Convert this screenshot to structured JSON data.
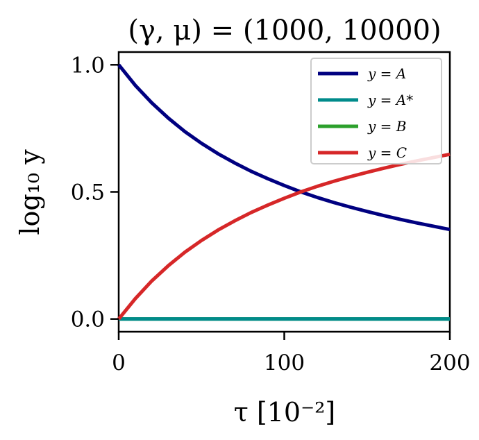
{
  "chart_data": {
    "type": "line",
    "title": "(γ, μ) = (1000, 10000)",
    "xlabel": "τ [10⁻²]",
    "ylabel": "log₁₀ y",
    "xlim": [
      0,
      200
    ],
    "ylim": [
      -0.05,
      1.05
    ],
    "xticks": [
      0,
      100,
      200
    ],
    "xtick_labels": [
      "0",
      "100",
      "200"
    ],
    "yticks": [
      0.0,
      0.5,
      1.0
    ],
    "ytick_labels": [
      "0.0",
      "0.5",
      "1.0"
    ],
    "grid": false,
    "legend_position": "top-right",
    "x": [
      0,
      10,
      20,
      30,
      40,
      50,
      60,
      70,
      80,
      90,
      100,
      110,
      120,
      130,
      140,
      150,
      160,
      170,
      180,
      190,
      200
    ],
    "series": [
      {
        "name": "y = A",
        "color": "#000080",
        "values": [
          1.0,
          0.919,
          0.85,
          0.79,
          0.737,
          0.691,
          0.65,
          0.614,
          0.581,
          0.552,
          0.525,
          0.5,
          0.478,
          0.458,
          0.44,
          0.423,
          0.407,
          0.392,
          0.378,
          0.365,
          0.352
        ]
      },
      {
        "name": "y = A*",
        "color": "#008b8b",
        "values": [
          0,
          0,
          0,
          0,
          0,
          0,
          0,
          0,
          0,
          0,
          0,
          0,
          0,
          0,
          0,
          0,
          0,
          0,
          0,
          0,
          0
        ]
      },
      {
        "name": "y = B",
        "color": "#2ca02c",
        "values": [
          0,
          0,
          0,
          0,
          0,
          0,
          0,
          0,
          0,
          0,
          0,
          0,
          0,
          0,
          0,
          0,
          0,
          0,
          0,
          0,
          0
        ]
      },
      {
        "name": "y = C",
        "color": "#d62728",
        "values": [
          0.0,
          0.08,
          0.15,
          0.21,
          0.263,
          0.309,
          0.35,
          0.386,
          0.419,
          0.448,
          0.475,
          0.5,
          0.522,
          0.542,
          0.56,
          0.577,
          0.593,
          0.608,
          0.622,
          0.635,
          0.648
        ]
      }
    ]
  }
}
